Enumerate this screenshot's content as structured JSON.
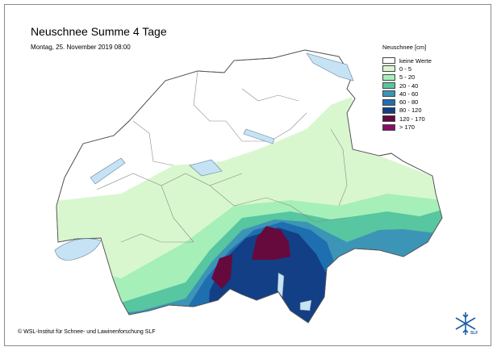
{
  "map": {
    "title": "Neuschnee Summe 4 Tage",
    "date": "Montag, 25. November 2019 08:00",
    "credit": "© WSL-Institut für Schnee- und Lawinenforschung SLF"
  },
  "legend": {
    "title": "Neuschnee [cm]",
    "items": [
      {
        "label": "keine Werte",
        "color": "#ffffff"
      },
      {
        "label": "0 - 5",
        "color": "#d9f7cf"
      },
      {
        "label": "5 - 20",
        "color": "#a6efb9"
      },
      {
        "label": "20 - 40",
        "color": "#57c6a1"
      },
      {
        "label": "40 - 60",
        "color": "#3c95b7"
      },
      {
        "label": "60 - 80",
        "color": "#1e6fb0"
      },
      {
        "label": "80 - 120",
        "color": "#123f85"
      },
      {
        "label": "120 - 170",
        "color": "#660a3d"
      },
      {
        "label": "> 170",
        "color": "#8a0e6a"
      }
    ]
  },
  "logo": {
    "text": "SLF"
  }
}
